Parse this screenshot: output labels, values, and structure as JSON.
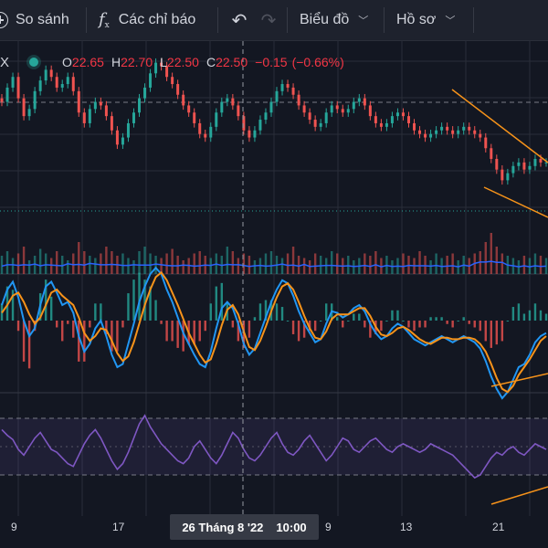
{
  "toolbar": {
    "compare_label": "So sánh",
    "indicators_label": "Các chỉ báo",
    "chart_label": "Biểu đồ",
    "profile_label": "Hồ sơ",
    "compare_icon": "plus-circle-icon",
    "indicators_icon": "fx-icon",
    "undo_icon": "undo-icon",
    "redo_icon": "redo-icon",
    "chevron_icon": "chevron-down-icon"
  },
  "legend": {
    "symbol_suffix": "X",
    "status_color": "#26a69a",
    "o_label": "O",
    "o_value": "22.65",
    "h_label": "H",
    "h_value": "22.70",
    "l_label": "L",
    "l_value": "22.50",
    "c_label": "C",
    "c_value": "22.50",
    "change": "−0.15",
    "change_pct": "(−0.66%)"
  },
  "x_axis": {
    "ticks": [
      "9",
      "17",
      "9",
      "13",
      "21"
    ],
    "crosshair_label": "26 Tháng 8 '22",
    "crosshair_time": "10:00"
  },
  "colors": {
    "background": "#131722",
    "up": "#26a69a",
    "down": "#ef5350",
    "macd": "#2196f3",
    "signal": "#f7931a",
    "rsi": "#7e57c2",
    "trendline": "#f7931a",
    "volume_ma": "#2962ff"
  },
  "chart_data": {
    "type": "candlestick",
    "panes": [
      "price",
      "volume",
      "macd",
      "rsi"
    ],
    "last_bar": {
      "open": 22.65,
      "high": 22.7,
      "low": 22.5,
      "close": 22.5,
      "change": -0.15,
      "change_pct": -0.66
    },
    "close_series": [
      24.2,
      24.6,
      24.9,
      24.3,
      23.8,
      24.0,
      24.5,
      24.8,
      25.1,
      24.9,
      24.6,
      24.7,
      24.9,
      24.5,
      23.9,
      23.6,
      24.0,
      24.2,
      24.1,
      23.8,
      23.4,
      23.0,
      23.2,
      23.6,
      23.9,
      24.3,
      24.6,
      25.0,
      25.3,
      25.2,
      24.9,
      24.7,
      24.4,
      24.1,
      23.9,
      23.6,
      23.3,
      23.2,
      23.5,
      23.9,
      24.2,
      24.3,
      24.1,
      23.8,
      23.4,
      23.2,
      23.4,
      23.7,
      23.9,
      24.2,
      24.5,
      24.7,
      24.6,
      24.4,
      24.1,
      23.9,
      23.7,
      23.5,
      23.6,
      23.9,
      24.1,
      24.0,
      23.9,
      24.0,
      24.2,
      24.3,
      24.1,
      23.8,
      23.6,
      23.5,
      23.6,
      23.8,
      23.9,
      23.8,
      23.6,
      23.4,
      23.3,
      23.2,
      23.3,
      23.4,
      23.5,
      23.4,
      23.3,
      23.4,
      23.5,
      23.4,
      23.3,
      23.2,
      22.9,
      22.6,
      22.3,
      22.0,
      22.2,
      22.4,
      22.5,
      22.3,
      22.4,
      22.6,
      22.5,
      22.5
    ],
    "macd_series": [
      0.1,
      0.2,
      0.25,
      0.15,
      0.0,
      -0.1,
      -0.05,
      0.1,
      0.22,
      0.25,
      0.18,
      0.1,
      0.12,
      0.05,
      -0.1,
      -0.2,
      -0.15,
      -0.05,
      0.0,
      -0.1,
      -0.22,
      -0.3,
      -0.28,
      -0.15,
      -0.02,
      0.12,
      0.22,
      0.3,
      0.34,
      0.3,
      0.2,
      0.12,
      0.02,
      -0.08,
      -0.15,
      -0.22,
      -0.28,
      -0.3,
      -0.2,
      -0.05,
      0.08,
      0.12,
      0.08,
      -0.02,
      -0.15,
      -0.22,
      -0.18,
      -0.08,
      0.02,
      0.12,
      0.2,
      0.26,
      0.24,
      0.16,
      0.06,
      -0.02,
      -0.08,
      -0.14,
      -0.12,
      -0.02,
      0.06,
      0.05,
      0.02,
      0.04,
      0.08,
      0.1,
      0.06,
      -0.02,
      -0.08,
      -0.12,
      -0.1,
      -0.05,
      -0.02,
      -0.04,
      -0.08,
      -0.12,
      -0.14,
      -0.16,
      -0.14,
      -0.12,
      -0.1,
      -0.12,
      -0.14,
      -0.12,
      -0.1,
      -0.12,
      -0.14,
      -0.18,
      -0.26,
      -0.36,
      -0.44,
      -0.5,
      -0.46,
      -0.38,
      -0.3,
      -0.28,
      -0.22,
      -0.14,
      -0.1,
      -0.08
    ],
    "signal_series": [
      0.05,
      0.1,
      0.16,
      0.18,
      0.12,
      0.04,
      -0.02,
      0.02,
      0.1,
      0.18,
      0.2,
      0.16,
      0.13,
      0.1,
      0.02,
      -0.08,
      -0.13,
      -0.1,
      -0.05,
      -0.06,
      -0.13,
      -0.21,
      -0.26,
      -0.23,
      -0.14,
      -0.02,
      0.1,
      0.2,
      0.28,
      0.31,
      0.26,
      0.18,
      0.1,
      0.01,
      -0.08,
      -0.15,
      -0.22,
      -0.27,
      -0.25,
      -0.15,
      -0.03,
      0.07,
      0.1,
      0.04,
      -0.07,
      -0.17,
      -0.19,
      -0.13,
      -0.04,
      0.06,
      0.15,
      0.22,
      0.24,
      0.2,
      0.12,
      0.03,
      -0.05,
      -0.11,
      -0.12,
      -0.07,
      0.01,
      0.04,
      0.04,
      0.04,
      0.06,
      0.08,
      0.08,
      0.03,
      -0.04,
      -0.09,
      -0.1,
      -0.08,
      -0.05,
      -0.04,
      -0.06,
      -0.09,
      -0.12,
      -0.14,
      -0.15,
      -0.13,
      -0.11,
      -0.11,
      -0.12,
      -0.12,
      -0.11,
      -0.11,
      -0.12,
      -0.15,
      -0.2,
      -0.28,
      -0.37,
      -0.44,
      -0.46,
      -0.42,
      -0.35,
      -0.3,
      -0.25,
      -0.19,
      -0.13,
      -0.1
    ],
    "rsi_series": [
      62,
      58,
      55,
      48,
      44,
      50,
      56,
      60,
      54,
      48,
      46,
      42,
      38,
      36,
      44,
      52,
      58,
      62,
      56,
      48,
      40,
      34,
      38,
      46,
      56,
      66,
      72,
      64,
      58,
      52,
      48,
      44,
      40,
      38,
      42,
      50,
      54,
      48,
      42,
      38,
      44,
      52,
      60,
      56,
      48,
      42,
      40,
      44,
      50,
      56,
      60,
      52,
      46,
      44,
      48,
      54,
      58,
      52,
      46,
      40,
      44,
      50,
      56,
      54,
      48,
      46,
      50,
      54,
      56,
      52,
      48,
      46,
      50,
      52,
      50,
      48,
      46,
      48,
      52,
      50,
      48,
      46,
      44,
      40,
      36,
      32,
      28,
      30,
      36,
      42,
      46,
      44,
      48,
      50,
      46,
      44,
      48,
      52,
      50,
      48
    ],
    "volume_series": [
      8,
      10,
      7,
      9,
      12,
      6,
      8,
      11,
      9,
      7,
      10,
      8,
      6,
      9,
      14,
      10,
      8,
      7,
      9,
      12,
      10,
      8,
      9,
      7,
      6,
      10,
      12,
      9,
      8,
      7,
      9,
      11,
      8,
      6,
      7,
      9,
      10,
      8,
      7,
      9,
      8,
      12,
      10,
      7,
      9,
      8,
      6,
      7,
      9,
      10,
      8,
      7,
      9,
      12,
      8,
      7,
      6,
      9,
      8,
      7,
      10,
      9,
      7,
      8,
      6,
      7,
      9,
      8,
      10,
      7,
      8,
      6,
      7,
      9,
      8,
      7,
      10,
      8,
      6,
      9,
      7,
      8,
      9,
      6,
      8,
      7,
      9,
      10,
      14,
      18,
      12,
      9,
      8,
      7,
      6,
      8,
      7,
      9,
      8,
      7
    ]
  }
}
